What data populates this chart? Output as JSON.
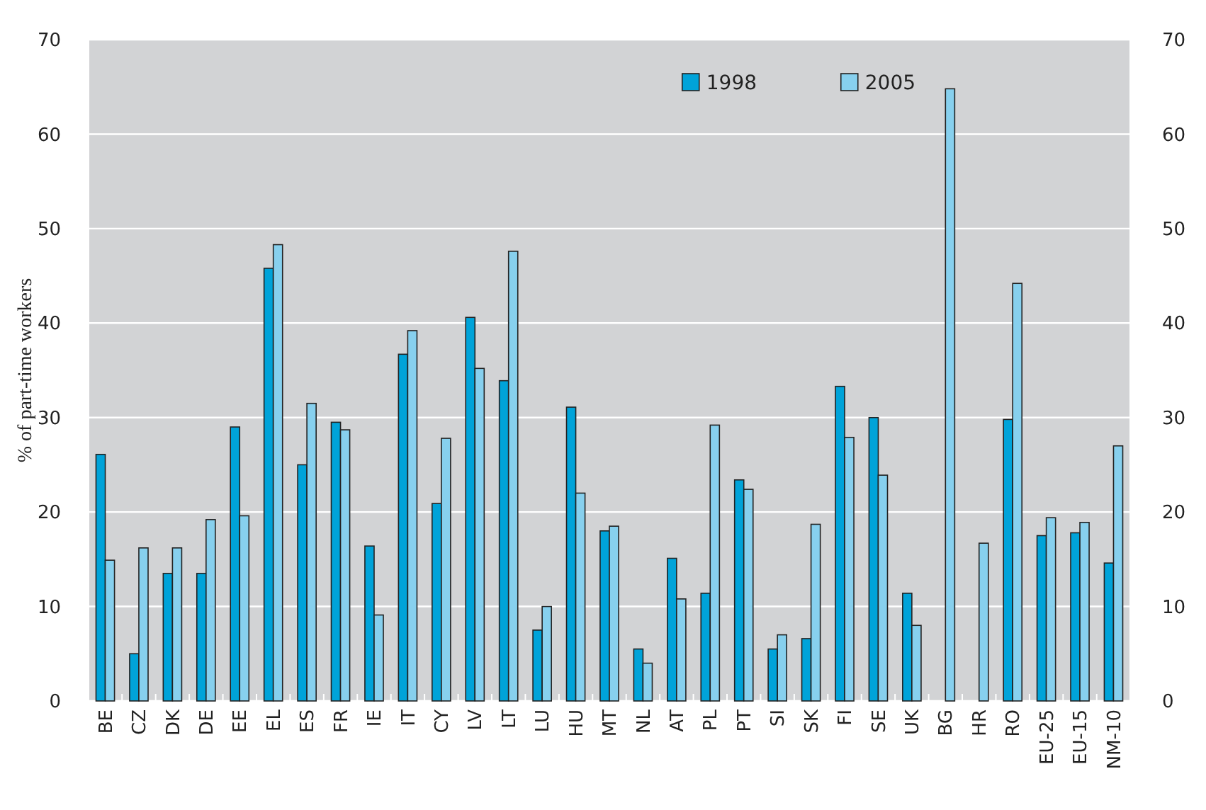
{
  "chart_data": {
    "type": "bar",
    "ylabel": "% of part-time workers",
    "categories": [
      "BE",
      "CZ",
      "DK",
      "DE",
      "EE",
      "EL",
      "ES",
      "FR",
      "IE",
      "IT",
      "CY",
      "LV",
      "LT",
      "LU",
      "HU",
      "MT",
      "NL",
      "AT",
      "PL",
      "PT",
      "SI",
      "SK",
      "FI",
      "SE",
      "UK",
      "BG",
      "HR",
      "RO",
      "EU-25",
      "EU-15",
      "NM-10"
    ],
    "series": [
      {
        "name": "1998",
        "color": "#00a3d9",
        "values": [
          26.1,
          5.0,
          13.5,
          13.5,
          29.0,
          45.8,
          25.0,
          29.5,
          16.4,
          36.7,
          20.9,
          40.6,
          33.9,
          7.5,
          31.1,
          18.0,
          5.5,
          15.1,
          11.4,
          23.4,
          5.5,
          6.6,
          33.3,
          30.0,
          11.4,
          null,
          null,
          29.8,
          17.5,
          17.8,
          14.6
        ]
      },
      {
        "name": "2005",
        "color": "#87d0ee",
        "values": [
          14.9,
          16.2,
          16.2,
          19.2,
          19.6,
          48.3,
          31.5,
          28.7,
          9.1,
          39.2,
          27.8,
          35.2,
          47.6,
          10.0,
          22.0,
          18.5,
          4.0,
          10.8,
          29.2,
          22.4,
          7.0,
          18.7,
          27.9,
          23.9,
          8.0,
          64.8,
          16.7,
          44.2,
          19.4,
          18.9,
          27.0
        ]
      }
    ],
    "ylim": [
      0,
      70
    ],
    "yticks": [
      0,
      10,
      20,
      30,
      40,
      50,
      60,
      70
    ],
    "y2lim": [
      0,
      70
    ],
    "y2ticks": [
      0,
      10,
      20,
      30,
      40,
      50,
      60,
      70
    ],
    "grid": "y",
    "legend": "top right"
  }
}
